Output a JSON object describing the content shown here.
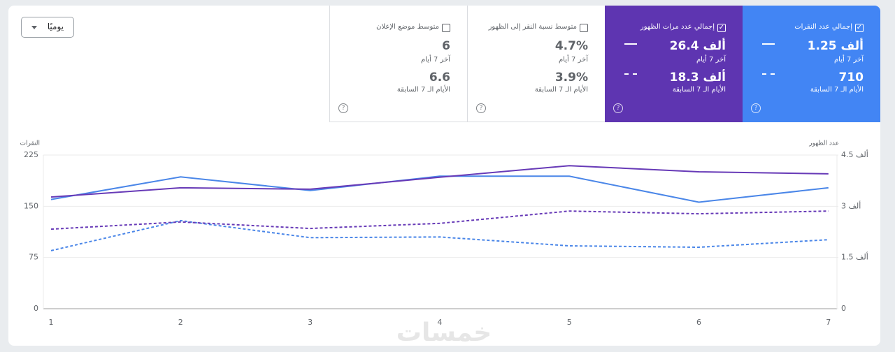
{
  "period_selector": "يوميًا",
  "metrics": [
    {
      "title": "إجمالي عدد النقرات",
      "checked": true,
      "current": "1.25 ألف",
      "current_label": "آخر 7 أيام",
      "previous": "710",
      "previous_label": "الأيام الـ 7 السابقة",
      "color": "#4285f4"
    },
    {
      "title": "إجمالي عدد مرات الظهور",
      "checked": true,
      "current": "26.4 ألف",
      "current_label": "آخر 7 أيام",
      "previous": "18.3 ألف",
      "previous_label": "الأيام الـ 7 السابقة",
      "color": "#5e35b1"
    },
    {
      "title": "متوسط نسبة النقر إلى الظهور",
      "checked": false,
      "current": "4.7%",
      "current_label": "آخر 7 أيام",
      "previous": "3.9%",
      "previous_label": "الأيام الـ 7 السابقة"
    },
    {
      "title": "متوسط موضع الإعلان",
      "checked": false,
      "current": "6",
      "current_label": "آخر 7 أيام",
      "previous": "6.6",
      "previous_label": "الأيام الـ 7 السابقة"
    }
  ],
  "watermark": "خمسات",
  "chart_data": {
    "type": "line",
    "ylabel": "النقرات",
    "y2label": "عدد الظهور",
    "categories": [
      "1",
      "2",
      "3",
      "4",
      "5",
      "6",
      "7"
    ],
    "ylim": [
      0,
      225
    ],
    "yticks": [
      0,
      75,
      150,
      225
    ],
    "y2lim": [
      0,
      4500
    ],
    "y2ticks": [
      0,
      {
        "value": 1500,
        "label": "1.5 ألف"
      },
      {
        "value": 3000,
        "label": "3 ألف"
      },
      {
        "value": 4500,
        "label": "4.5 ألف"
      }
    ],
    "grid": true,
    "series": [
      {
        "color": "#4a86e8",
        "style": "solid",
        "values": [
          160,
          193,
          173,
          194,
          194,
          156,
          177
        ]
      },
      {
        "color": "#4a86e8",
        "style": "dashed",
        "values": [
          85,
          129,
          104,
          105,
          92,
          90,
          101
        ]
      },
      {
        "color": "#673ab7",
        "style": "solid",
        "axis": "y2",
        "values": [
          3270,
          3540,
          3500,
          3850,
          4190,
          4010,
          3950
        ]
      },
      {
        "color": "#673ab7",
        "style": "dashed",
        "axis": "y2",
        "values": [
          2330,
          2540,
          2350,
          2500,
          2860,
          2780,
          2860
        ]
      }
    ]
  }
}
